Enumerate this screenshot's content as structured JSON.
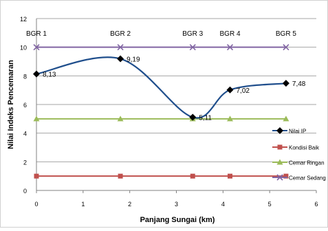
{
  "chart_data": {
    "type": "scatter",
    "xlabel": "Panjang Sungai (km)",
    "ylabel": "Nilai Indeks Pencemaran",
    "xlim": [
      0,
      6
    ],
    "ylim": [
      0,
      12
    ],
    "x_ticks": [
      0,
      1,
      2,
      3,
      4,
      5,
      6
    ],
    "y_ticks": [
      0,
      2,
      4,
      6,
      8,
      10,
      12
    ],
    "grid": "horizontal",
    "legend_position": "right",
    "station_labels": [
      {
        "text": "BGR 1",
        "x": 0
      },
      {
        "text": "BGR 2",
        "x": 1.8
      },
      {
        "text": "BGR 3",
        "x": 3.35
      },
      {
        "text": "BGR 4",
        "x": 4.15
      },
      {
        "text": "BGR 5",
        "x": 5.35
      }
    ],
    "series": [
      {
        "name": "Nilai IP",
        "color": "#1f4e8c",
        "marker": "diamond",
        "smooth": true,
        "x": [
          0,
          1.8,
          3.35,
          4.15,
          5.35
        ],
        "values": [
          8.13,
          9.19,
          5.11,
          7.02,
          7.48
        ],
        "data_labels": [
          "8,13",
          "9,19",
          "5,11",
          "7,02",
          "7,48"
        ]
      },
      {
        "name": "Kondisi Baik",
        "color": "#c0504d",
        "marker": "square",
        "smooth": false,
        "x": [
          0,
          1.8,
          3.35,
          4.15,
          5.35
        ],
        "values": [
          1,
          1,
          1,
          1,
          1
        ]
      },
      {
        "name": "Cemar Ringan",
        "color": "#9bbb59",
        "marker": "triangle",
        "smooth": false,
        "x": [
          0,
          1.8,
          3.35,
          4.15,
          5.35
        ],
        "values": [
          5,
          5,
          5,
          5,
          5
        ]
      },
      {
        "name": "Cemar Sedang",
        "color": "#8064a2",
        "marker": "x",
        "smooth": false,
        "x": [
          0,
          1.8,
          3.35,
          4.15,
          5.35
        ],
        "values": [
          10,
          10,
          10,
          10,
          10
        ]
      }
    ]
  }
}
